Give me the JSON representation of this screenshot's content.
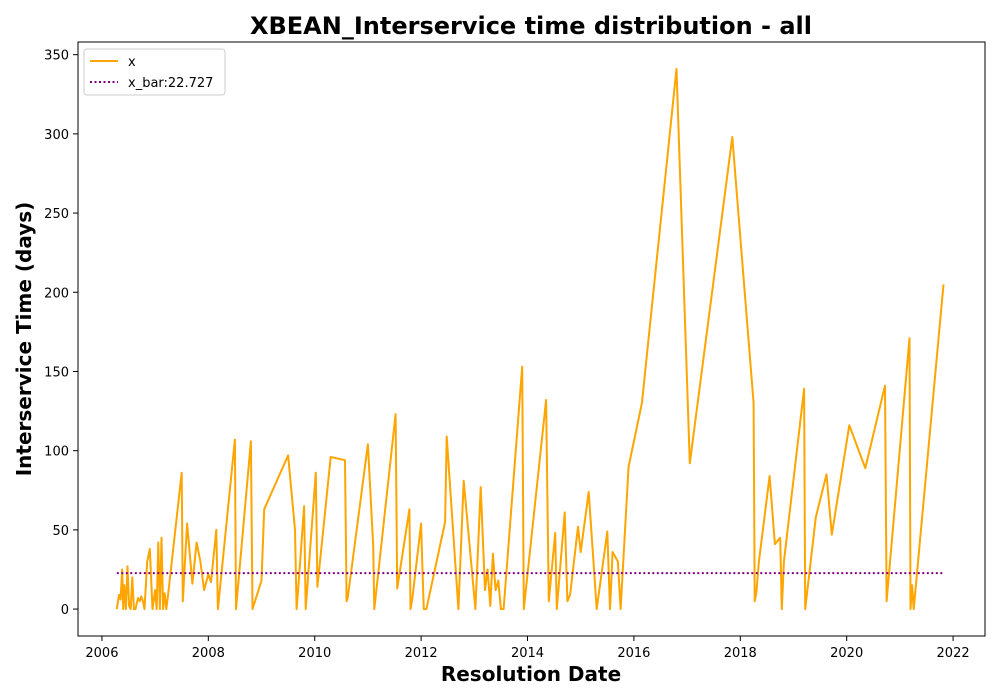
{
  "chart_data": {
    "type": "line",
    "title": "XBEAN_Interservice time distribution - all",
    "xlabel": "Resolution Date",
    "ylabel": "Interservice Time (days)",
    "xlim": [
      2005.55,
      2022.6
    ],
    "ylim": [
      -17,
      358
    ],
    "xticks": [
      2006,
      2008,
      2010,
      2012,
      2014,
      2016,
      2018,
      2020,
      2022
    ],
    "yticks": [
      0,
      50,
      100,
      150,
      200,
      250,
      300,
      350
    ],
    "legend": {
      "position": "upper-left",
      "entries": [
        "x",
        "x_bar:22.727"
      ]
    },
    "colors": {
      "series": "#ffa500",
      "mean": "#800080"
    },
    "series": [
      {
        "name": "x",
        "style": "solid",
        "x": [
          2006.28,
          2006.32,
          2006.35,
          2006.38,
          2006.4,
          2006.42,
          2006.45,
          2006.48,
          2006.51,
          2006.54,
          2006.57,
          2006.6,
          2006.63,
          2006.65,
          2006.68,
          2006.71,
          2006.74,
          2006.77,
          2006.8,
          2006.85,
          2006.9,
          2006.95,
          2007.0,
          2007.03,
          2007.06,
          2007.09,
          2007.12,
          2007.15,
          2007.18,
          2007.21,
          2007.24,
          2007.5,
          2007.52,
          2007.6,
          2007.7,
          2007.78,
          2007.85,
          2007.92,
          2008.0,
          2008.05,
          2008.15,
          2008.18,
          2008.5,
          2008.52,
          2008.8,
          2008.83,
          2009.0,
          2009.05,
          2009.5,
          2009.63,
          2009.66,
          2009.7,
          2009.8,
          2009.83,
          2010.02,
          2010.05,
          2010.3,
          2010.57,
          2010.6,
          2010.62,
          2011.0,
          2011.1,
          2011.12,
          2011.52,
          2011.55,
          2011.78,
          2011.8,
          2011.84,
          2012.0,
          2012.02,
          2012.05,
          2012.1,
          2012.45,
          2012.48,
          2012.7,
          2012.8,
          2013.02,
          2013.12,
          2013.2,
          2013.25,
          2013.3,
          2013.35,
          2013.4,
          2013.45,
          2013.5,
          2013.55,
          2013.9,
          2013.93,
          2014.35,
          2014.4,
          2014.52,
          2014.55,
          2014.7,
          2014.75,
          2014.8,
          2014.95,
          2015.0,
          2015.15,
          2015.3,
          2015.5,
          2015.55,
          2015.6,
          2015.7,
          2015.75,
          2015.9,
          2016.15,
          2016.8,
          2017.05,
          2017.85,
          2018.25,
          2018.27,
          2018.3,
          2018.35,
          2018.55,
          2018.65,
          2018.75,
          2018.78,
          2018.82,
          2019.2,
          2019.22,
          2019.42,
          2019.62,
          2019.72,
          2020.05,
          2020.35,
          2020.72,
          2020.75,
          2021.18,
          2021.2,
          2021.23,
          2021.26,
          2021.82
        ],
        "y": [
          0,
          9,
          6,
          25,
          0,
          15,
          0,
          27,
          2,
          0,
          20,
          0,
          0,
          3,
          7,
          5,
          8,
          5,
          0,
          30,
          38,
          0,
          12,
          0,
          42,
          0,
          45,
          0,
          10,
          0,
          8,
          86,
          5,
          54,
          16,
          42,
          30,
          12,
          22,
          17,
          50,
          0,
          107,
          0,
          106,
          0,
          18,
          63,
          97,
          50,
          0,
          18,
          65,
          0,
          86,
          14,
          96,
          94,
          5,
          7,
          104,
          40,
          0,
          123,
          13,
          63,
          0,
          8,
          54,
          30,
          0,
          0,
          55,
          109,
          0,
          81,
          0,
          77,
          12,
          25,
          2,
          35,
          12,
          18,
          0,
          0,
          153,
          0,
          132,
          5,
          48,
          0,
          61,
          5,
          9,
          52,
          36,
          74,
          0,
          49,
          0,
          36,
          30,
          0,
          90,
          130,
          341,
          92,
          298,
          130,
          5,
          10,
          30,
          84,
          41,
          45,
          0,
          30,
          139,
          0,
          58,
          85,
          47,
          116,
          89,
          141,
          5,
          171,
          0,
          15,
          0,
          205
        ]
      },
      {
        "name": "x_bar:22.727",
        "style": "dotted",
        "x": [
          2006.28,
          2021.82
        ],
        "y": [
          22.727,
          22.727
        ]
      }
    ]
  }
}
